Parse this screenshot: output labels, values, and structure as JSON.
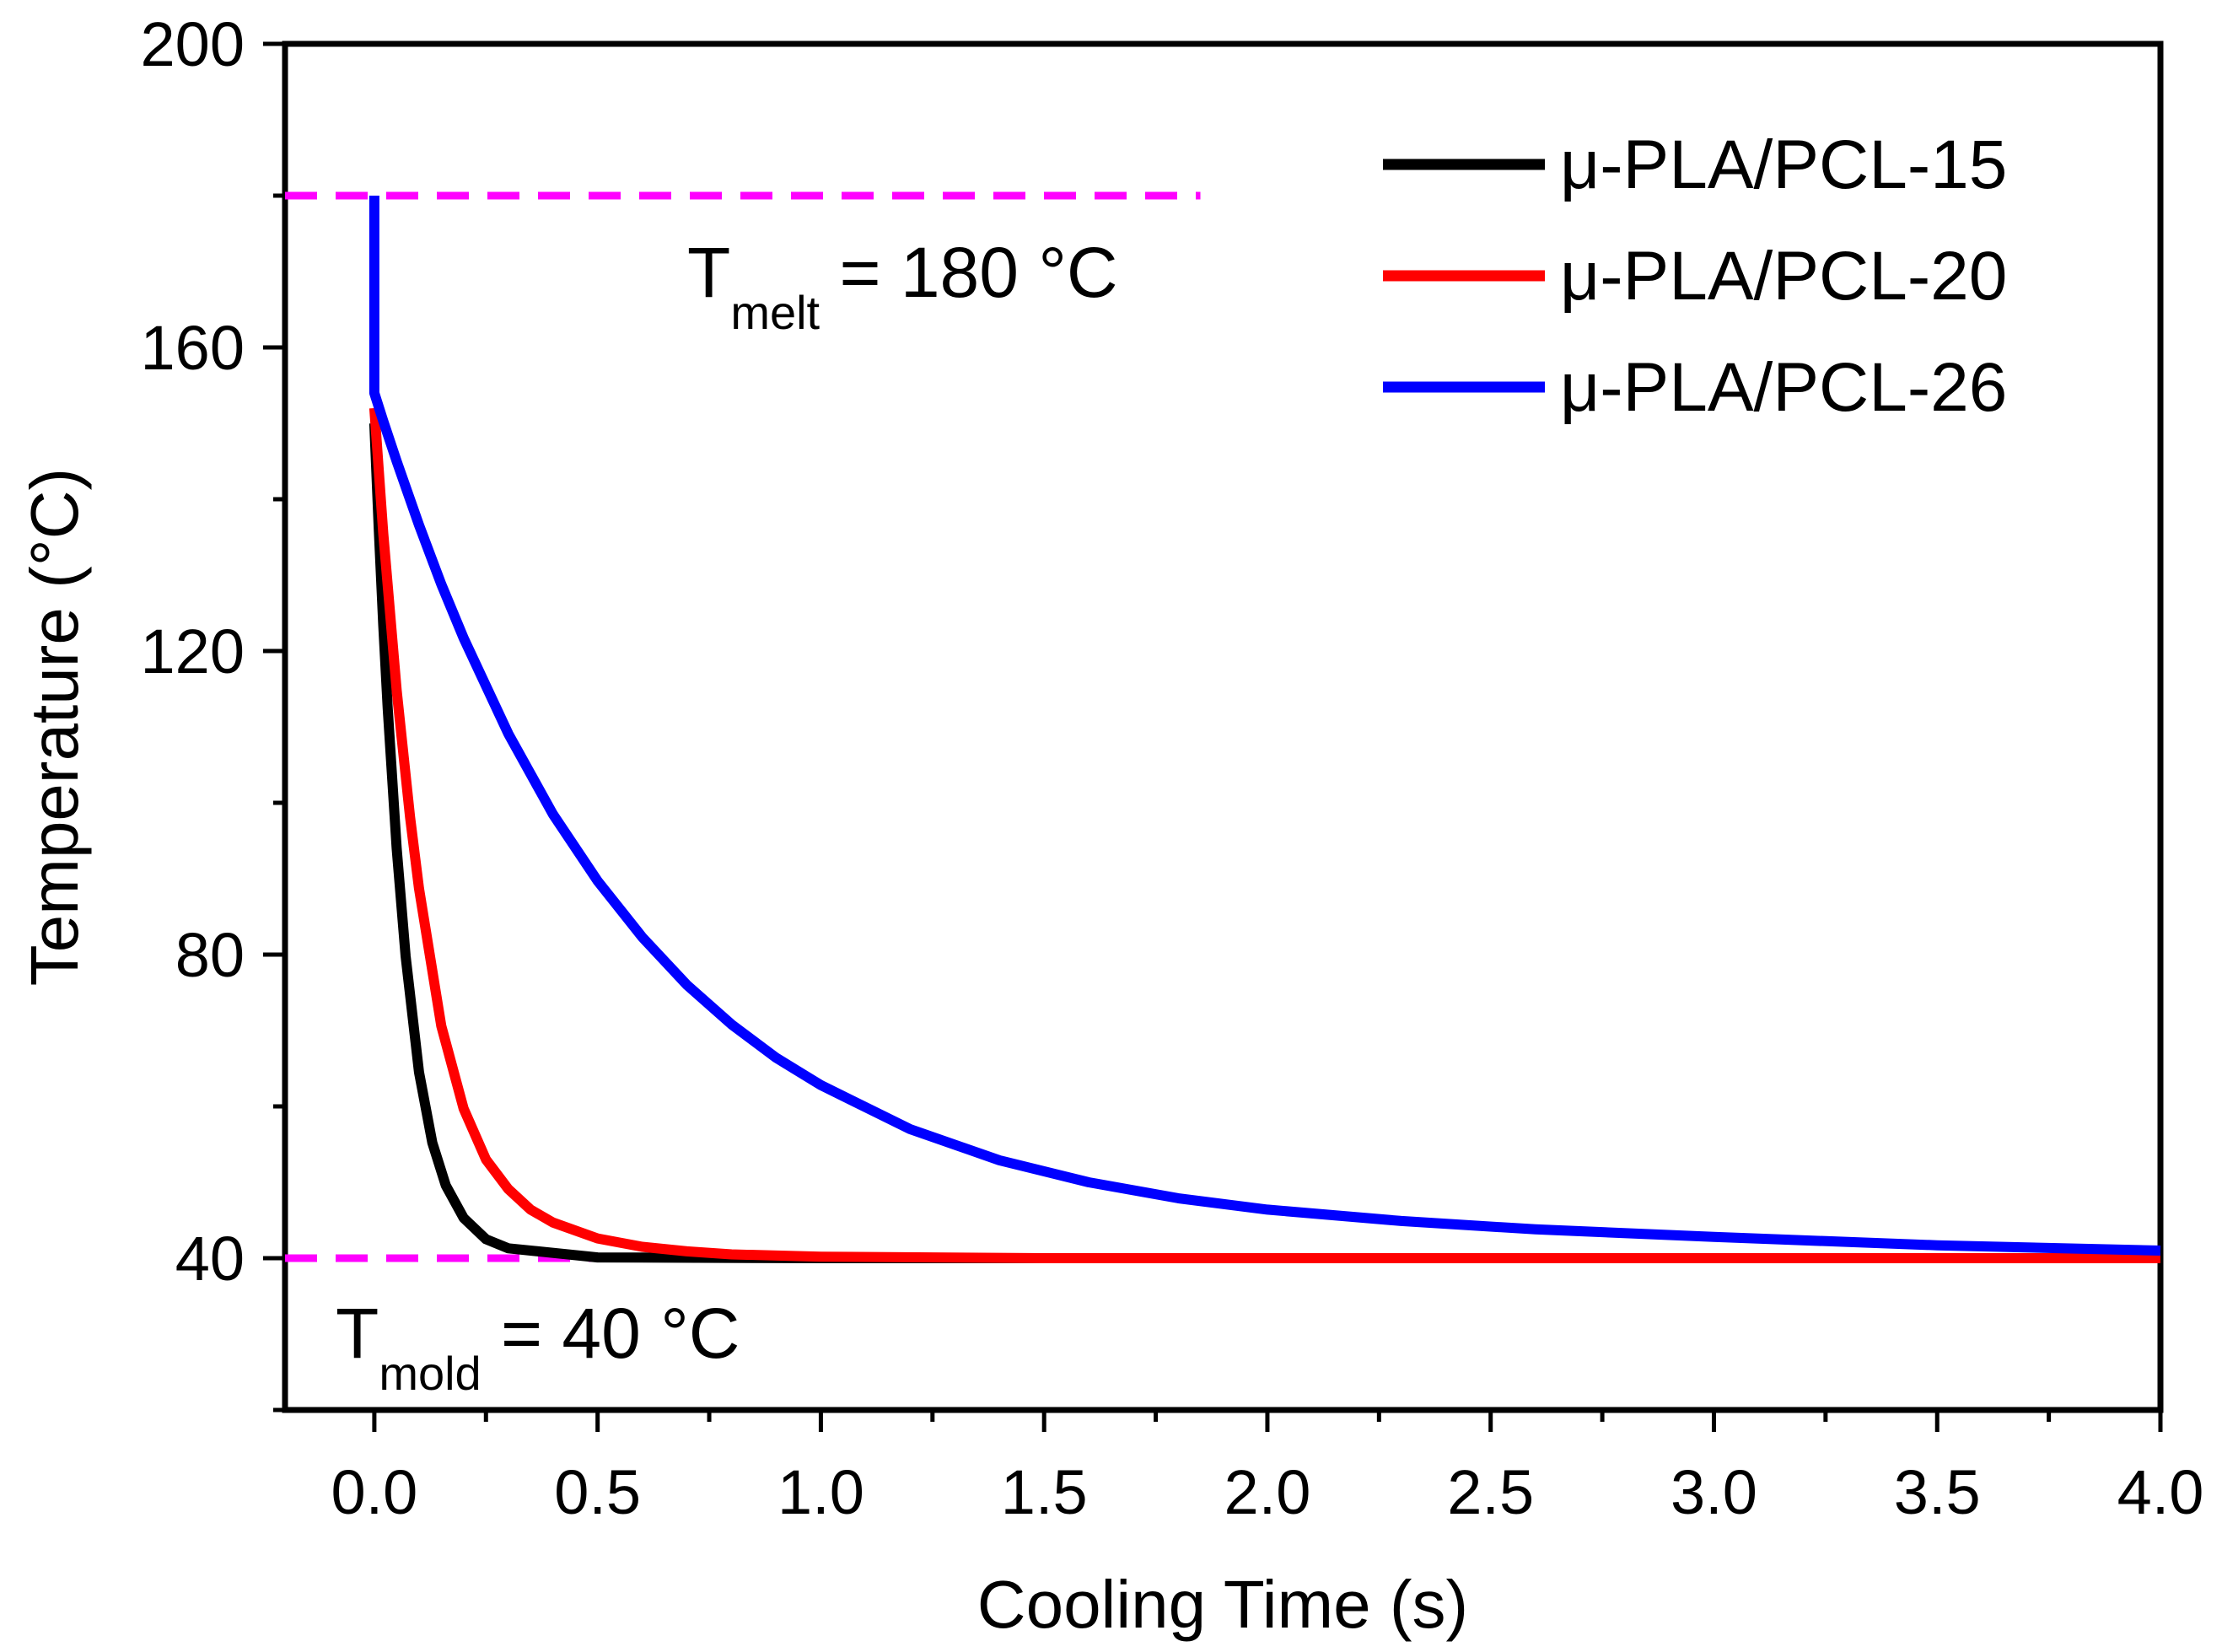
{
  "chart_data": {
    "type": "line",
    "xlabel": "Cooling Time (s)",
    "ylabel": "Temperature (°C)",
    "xlim": [
      -0.2,
      4.0
    ],
    "ylim": [
      20,
      200
    ],
    "xticks": [
      0.0,
      0.5,
      1.0,
      1.5,
      2.0,
      2.5,
      3.0,
      3.5,
      4.0
    ],
    "xtick_labels": [
      "0.0",
      "0.5",
      "1.0",
      "1.5",
      "2.0",
      "2.5",
      "3.0",
      "3.5",
      "4.0"
    ],
    "yticks": [
      40,
      80,
      120,
      160,
      200
    ],
    "ytick_labels": [
      "40",
      "80",
      "120",
      "160",
      "200"
    ],
    "legend_position": "top-right",
    "series": [
      {
        "name": "μ-PLA/PCL-15",
        "color": "#000000",
        "x": [
          0.0,
          0.01,
          0.02,
          0.03,
          0.05,
          0.07,
          0.1,
          0.13,
          0.16,
          0.2,
          0.25,
          0.3,
          0.5,
          1.0,
          2.0,
          3.0,
          4.0
        ],
        "y": [
          150,
          136.0,
          123.4,
          112.4,
          94.0,
          79.8,
          64.5,
          55.2,
          49.6,
          45.3,
          42.5,
          41.3,
          40.1,
          40.0,
          40.0,
          40.0,
          40.0
        ]
      },
      {
        "name": "μ-PLA/PCL-20",
        "color": "#ff0000",
        "x": [
          0.0,
          0.02,
          0.05,
          0.08,
          0.1,
          0.15,
          0.2,
          0.25,
          0.3,
          0.35,
          0.4,
          0.5,
          0.6,
          0.7,
          0.8,
          1.0,
          1.5,
          2.0,
          3.0,
          4.0
        ],
        "y": [
          152,
          135.5,
          114.8,
          98.1,
          88.7,
          70.6,
          59.7,
          53.0,
          49.1,
          46.4,
          44.7,
          42.6,
          41.5,
          40.9,
          40.5,
          40.2,
          40.0,
          40.0,
          40.0,
          40.0
        ]
      },
      {
        "name": "μ-PLA/PCL-26",
        "color": "#0000ff",
        "x": [
          0.0,
          0.0,
          0.02,
          0.05,
          0.1,
          0.15,
          0.2,
          0.3,
          0.4,
          0.5,
          0.6,
          0.7,
          0.8,
          0.9,
          1.0,
          1.2,
          1.4,
          1.6,
          1.8,
          2.0,
          2.3,
          2.6,
          3.0,
          3.5,
          4.0
        ],
        "y": [
          180,
          154,
          150.3,
          145.0,
          136.6,
          128.8,
          121.7,
          109.1,
          98.5,
          89.7,
          82.3,
          76.0,
          70.8,
          66.4,
          62.8,
          57.0,
          52.9,
          50.0,
          47.9,
          46.4,
          44.9,
          43.8,
          42.8,
          41.7,
          41.0
        ]
      }
    ],
    "reference_lines": [
      {
        "name": "T_melt",
        "y": 180,
        "x_range": [
          -0.2,
          1.85
        ],
        "color": "#ff00ff",
        "style": "dashed"
      },
      {
        "name": "T_mold",
        "y": 40,
        "x_range": [
          -0.2,
          1.45
        ],
        "color": "#ff00ff",
        "style": "dashed"
      }
    ],
    "annotations": {
      "melt": {
        "base": "T",
        "sub": "melt",
        "rest": " = 180 °C"
      },
      "mold": {
        "base": "T",
        "sub": "mold",
        "rest": " = 40 °C"
      }
    }
  }
}
